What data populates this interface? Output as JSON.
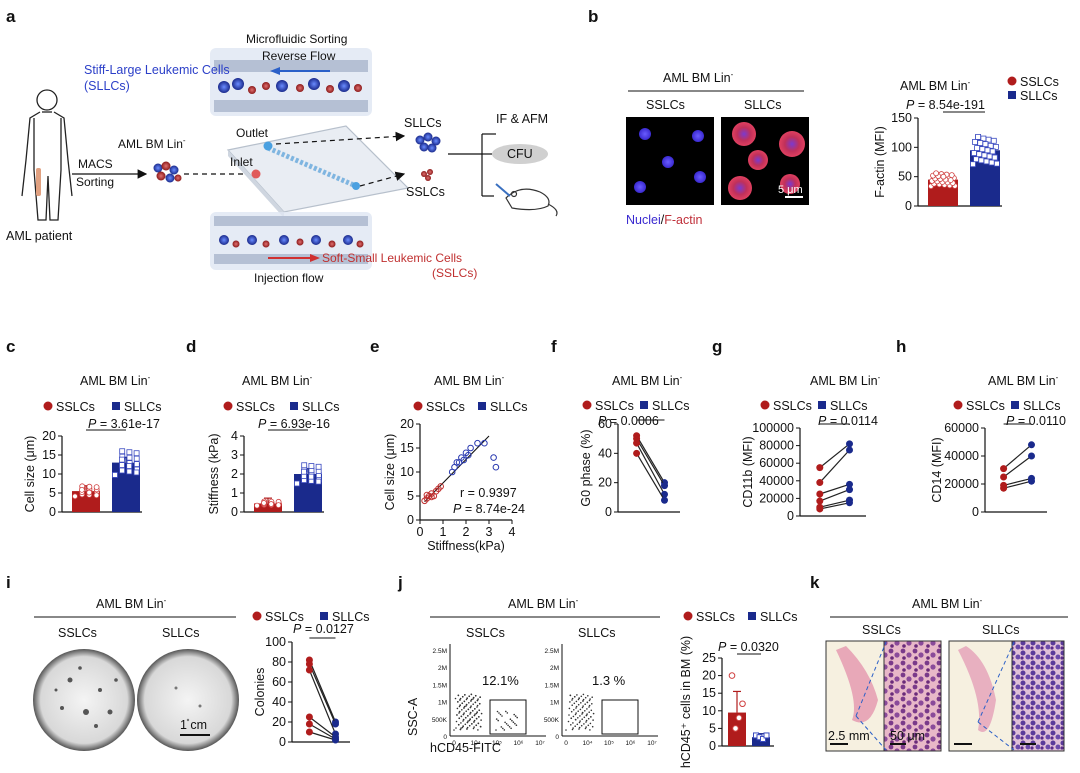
{
  "panel_letters": {
    "a": "a",
    "b": "b",
    "c": "c",
    "d": "d",
    "e": "e",
    "f": "f",
    "g": "g",
    "h": "h",
    "i": "i",
    "j": "j",
    "k": "k"
  },
  "common": {
    "aml_lin": "AML BM Lin",
    "sup": "-",
    "sslcs": "SSLCs",
    "sllcs": "SLLCs",
    "color_sslcs": "#b01c1c",
    "color_sllcs": "#1a2a8c"
  },
  "panel_a": {
    "microfluidic": "Microfluidic Sorting",
    "reverse_flow": "Reverse Flow",
    "stiff_large": "Stiff-Large Leukemic Cells",
    "stiff_large_abbr": "(SLLCs)",
    "aml_lin": "AML BM Lin",
    "macs": "MACS",
    "sorting": "Sorting",
    "outlet": "Outlet",
    "inlet": "Inlet",
    "sllcs": "SLLCs",
    "sslcs": "SSLCs",
    "if_afm": "IF & AFM",
    "cfu": "CFU",
    "aml_patient": "AML patient",
    "injection_flow": "Injection flow",
    "soft_small": "Soft-Small Leukemic Cells",
    "soft_small_abbr": "(SSLCs)"
  },
  "panel_b": {
    "title": "AML BM Lin",
    "col1": "SSLCs",
    "col2": "SLLCs",
    "scale": "5 μm",
    "legend_nuclei": "Nuclei",
    "legend_sep": "/",
    "legend_factin": "F-actin",
    "chart_title": "AML BM Lin",
    "p_value": "= 8.54e-191",
    "ylabel": "F-actin (MFI)"
  },
  "panel_c": {
    "title": "AML BM Lin",
    "p": "= 3.61e-17",
    "ylabel": "Cell size (μm)"
  },
  "panel_d": {
    "title": "AML BM Lin",
    "p": "= 6.93e-16",
    "ylabel": "Stiffness (kPa)"
  },
  "panel_e": {
    "title": "AML BM Lin",
    "r": "r = 0.9397",
    "p": "= 8.74e-24",
    "ylabel": "Cell size (μm)",
    "xlabel": "Stiffness(kPa)"
  },
  "panel_f": {
    "title": "AML BM Lin",
    "p": "= 0.0006",
    "ylabel": "G0 phase (%)"
  },
  "panel_g": {
    "title": "AML BM Lin",
    "p": "= 0.0114",
    "ylabel": "CD11b (MFI)"
  },
  "panel_h": {
    "title": "AML BM Lin",
    "p": "= 0.0110",
    "ylabel": "CD14 (MFI)"
  },
  "panel_i": {
    "title": "AML BM Lin",
    "col1": "SSLCs",
    "col2": "SLLCs",
    "scale": "1 cm",
    "p": "= 0.0127",
    "ylabel": "Colonies"
  },
  "panel_j": {
    "title": "AML BM Lin",
    "col1": "SSLCs",
    "col2": "SLLCs",
    "gate1": "12.1%",
    "gate2": "1.3 %",
    "ylabel": "SSC-A",
    "xlabel": "hCD45-FITC",
    "p": "= 0.0320",
    "bar_ylabel": "hCD45⁺ cells in BM (%)",
    "yticks": [
      "2.5M",
      "2M",
      "1.5M",
      "1M",
      "500K",
      "0"
    ],
    "xticks": [
      "0",
      "10⁴",
      "10⁵",
      "10⁶",
      "10⁷"
    ]
  },
  "panel_k": {
    "title": "AML BM Lin",
    "col1": "SSLCs",
    "col2": "SLLCs",
    "scale1": "2.5 mm",
    "scale2": "50 μm"
  },
  "chart_data": [
    {
      "id": "b",
      "type": "bar",
      "categories": [
        "SSLCs",
        "SLLCs"
      ],
      "values": [
        45,
        95
      ],
      "ylim": [
        0,
        150
      ],
      "yticks": [
        0,
        50,
        100,
        150
      ],
      "ylabel": "F-actin (MFI)"
    },
    {
      "id": "c",
      "type": "bar",
      "categories": [
        "SSLCs",
        "SLLCs"
      ],
      "values": [
        5.5,
        13
      ],
      "ylim": [
        0,
        20
      ],
      "yticks": [
        0,
        5,
        10,
        15,
        20
      ],
      "ylabel": "Cell size (μm)"
    },
    {
      "id": "d",
      "type": "bar",
      "categories": [
        "SSLCs",
        "SLLCs"
      ],
      "values": [
        0.45,
        2.0
      ],
      "ylim": [
        0,
        4
      ],
      "yticks": [
        0,
        1,
        2,
        3,
        4
      ],
      "ylabel": "Stiffness (kPa)"
    },
    {
      "id": "e",
      "type": "scatter",
      "xlim": [
        0,
        4
      ],
      "ylim": [
        0,
        20
      ],
      "xticks": [
        0,
        1,
        2,
        3,
        4
      ],
      "yticks": [
        0,
        5,
        10,
        15,
        20
      ],
      "series": [
        {
          "name": "SSLCs",
          "points": [
            [
              0.2,
              4
            ],
            [
              0.3,
              4.5
            ],
            [
              0.4,
              5
            ],
            [
              0.5,
              5.5
            ],
            [
              0.6,
              5
            ],
            [
              0.7,
              6
            ],
            [
              0.8,
              6.5
            ],
            [
              0.3,
              5.2
            ],
            [
              0.5,
              4.8
            ],
            [
              0.9,
              7
            ]
          ]
        },
        {
          "name": "SLLCs",
          "points": [
            [
              1.4,
              10
            ],
            [
              1.5,
              11
            ],
            [
              1.6,
              12
            ],
            [
              1.7,
              12
            ],
            [
              1.8,
              13
            ],
            [
              2.0,
              14
            ],
            [
              2.2,
              15
            ],
            [
              2.5,
              16
            ],
            [
              2.8,
              16
            ],
            [
              3.2,
              13
            ],
            [
              3.3,
              11
            ],
            [
              1.9,
              12.5
            ],
            [
              2.1,
              13.5
            ]
          ]
        }
      ]
    },
    {
      "id": "f",
      "type": "line",
      "ylim": [
        0,
        60
      ],
      "yticks": [
        0,
        20,
        40,
        60
      ],
      "ylabel": "G0 phase (%)",
      "pairs": [
        [
          52,
          20
        ],
        [
          50,
          18
        ],
        [
          47,
          12
        ],
        [
          40,
          8
        ]
      ]
    },
    {
      "id": "g",
      "type": "line",
      "ylim": [
        0,
        100000
      ],
      "yticks": [
        0,
        20000,
        40000,
        60000,
        80000,
        100000
      ],
      "ylabel": "CD11b (MFI)",
      "pairs": [
        [
          55000,
          82000
        ],
        [
          38000,
          75000
        ],
        [
          25000,
          36000
        ],
        [
          17000,
          30000
        ],
        [
          10000,
          18000
        ],
        [
          8000,
          15000
        ]
      ]
    },
    {
      "id": "h",
      "type": "line",
      "ylim": [
        0,
        60000
      ],
      "yticks": [
        0,
        20000,
        40000,
        60000
      ],
      "ylabel": "CD14 (MFI)",
      "pairs": [
        [
          31000,
          48000
        ],
        [
          25000,
          40000
        ],
        [
          19000,
          24000
        ],
        [
          17000,
          22000
        ]
      ]
    },
    {
      "id": "i",
      "type": "line",
      "ylim": [
        0,
        100
      ],
      "yticks": [
        0,
        20,
        40,
        60,
        80,
        100
      ],
      "ylabel": "Colonies",
      "pairs": [
        [
          82,
          20
        ],
        [
          78,
          18
        ],
        [
          72,
          8
        ],
        [
          25,
          5
        ],
        [
          18,
          3
        ],
        [
          10,
          2
        ]
      ]
    },
    {
      "id": "j",
      "type": "bar",
      "categories": [
        "SSLCs",
        "SLLCs"
      ],
      "values": [
        9.5,
        2.5
      ],
      "ylim": [
        0,
        25
      ],
      "yticks": [
        0,
        5,
        10,
        15,
        20,
        25
      ],
      "ylabel": "hCD45⁺ cells in BM (%)",
      "points": [
        [
          20,
          5,
          8,
          12
        ],
        [
          3,
          2.5,
          2,
          3
        ]
      ]
    }
  ]
}
